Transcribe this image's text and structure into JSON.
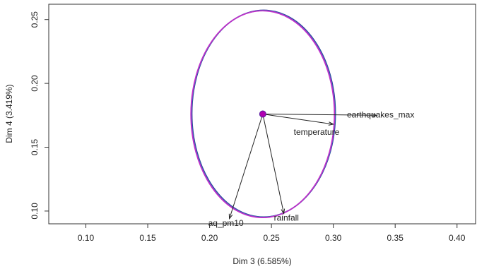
{
  "chart_data": {
    "type": "scatter",
    "xlabel": "Dim 3 (6.585%)",
    "ylabel": "Dim 4 (3.419%)",
    "xlim": [
      0.07,
      0.415
    ],
    "ylim": [
      0.09,
      0.262
    ],
    "x_ticks": [
      0.1,
      0.15,
      0.2,
      0.25,
      0.3,
      0.35,
      0.4
    ],
    "x_tick_labels": [
      "0.10",
      "0.15",
      "0.20",
      "0.25",
      "0.30",
      "0.35",
      "0.40"
    ],
    "y_ticks": [
      0.1,
      0.15,
      0.2,
      0.25
    ],
    "y_tick_labels": [
      "0.10",
      "0.15",
      "0.20",
      "0.25"
    ],
    "center": {
      "x": 0.243,
      "y": 0.176
    },
    "confidence_ellipse": {
      "center": {
        "x": 0.243,
        "y": 0.176
      },
      "x_radius": 0.058,
      "y_radius": 0.081,
      "colors": [
        "#1f2f8a",
        "#2277aa",
        "#7b3fd0",
        "#c030c8"
      ]
    },
    "center_point_color": "#b000b0",
    "variables": [
      {
        "name": "earthquakes_max",
        "x": 0.335,
        "y": 0.175
      },
      {
        "name": "temperature",
        "x": 0.3,
        "y": 0.168
      },
      {
        "name": "rainfall",
        "x": 0.26,
        "y": 0.098
      },
      {
        "name": "aq_pm10",
        "x": 0.216,
        "y": 0.094
      }
    ],
    "grid": false,
    "legend": "none"
  }
}
